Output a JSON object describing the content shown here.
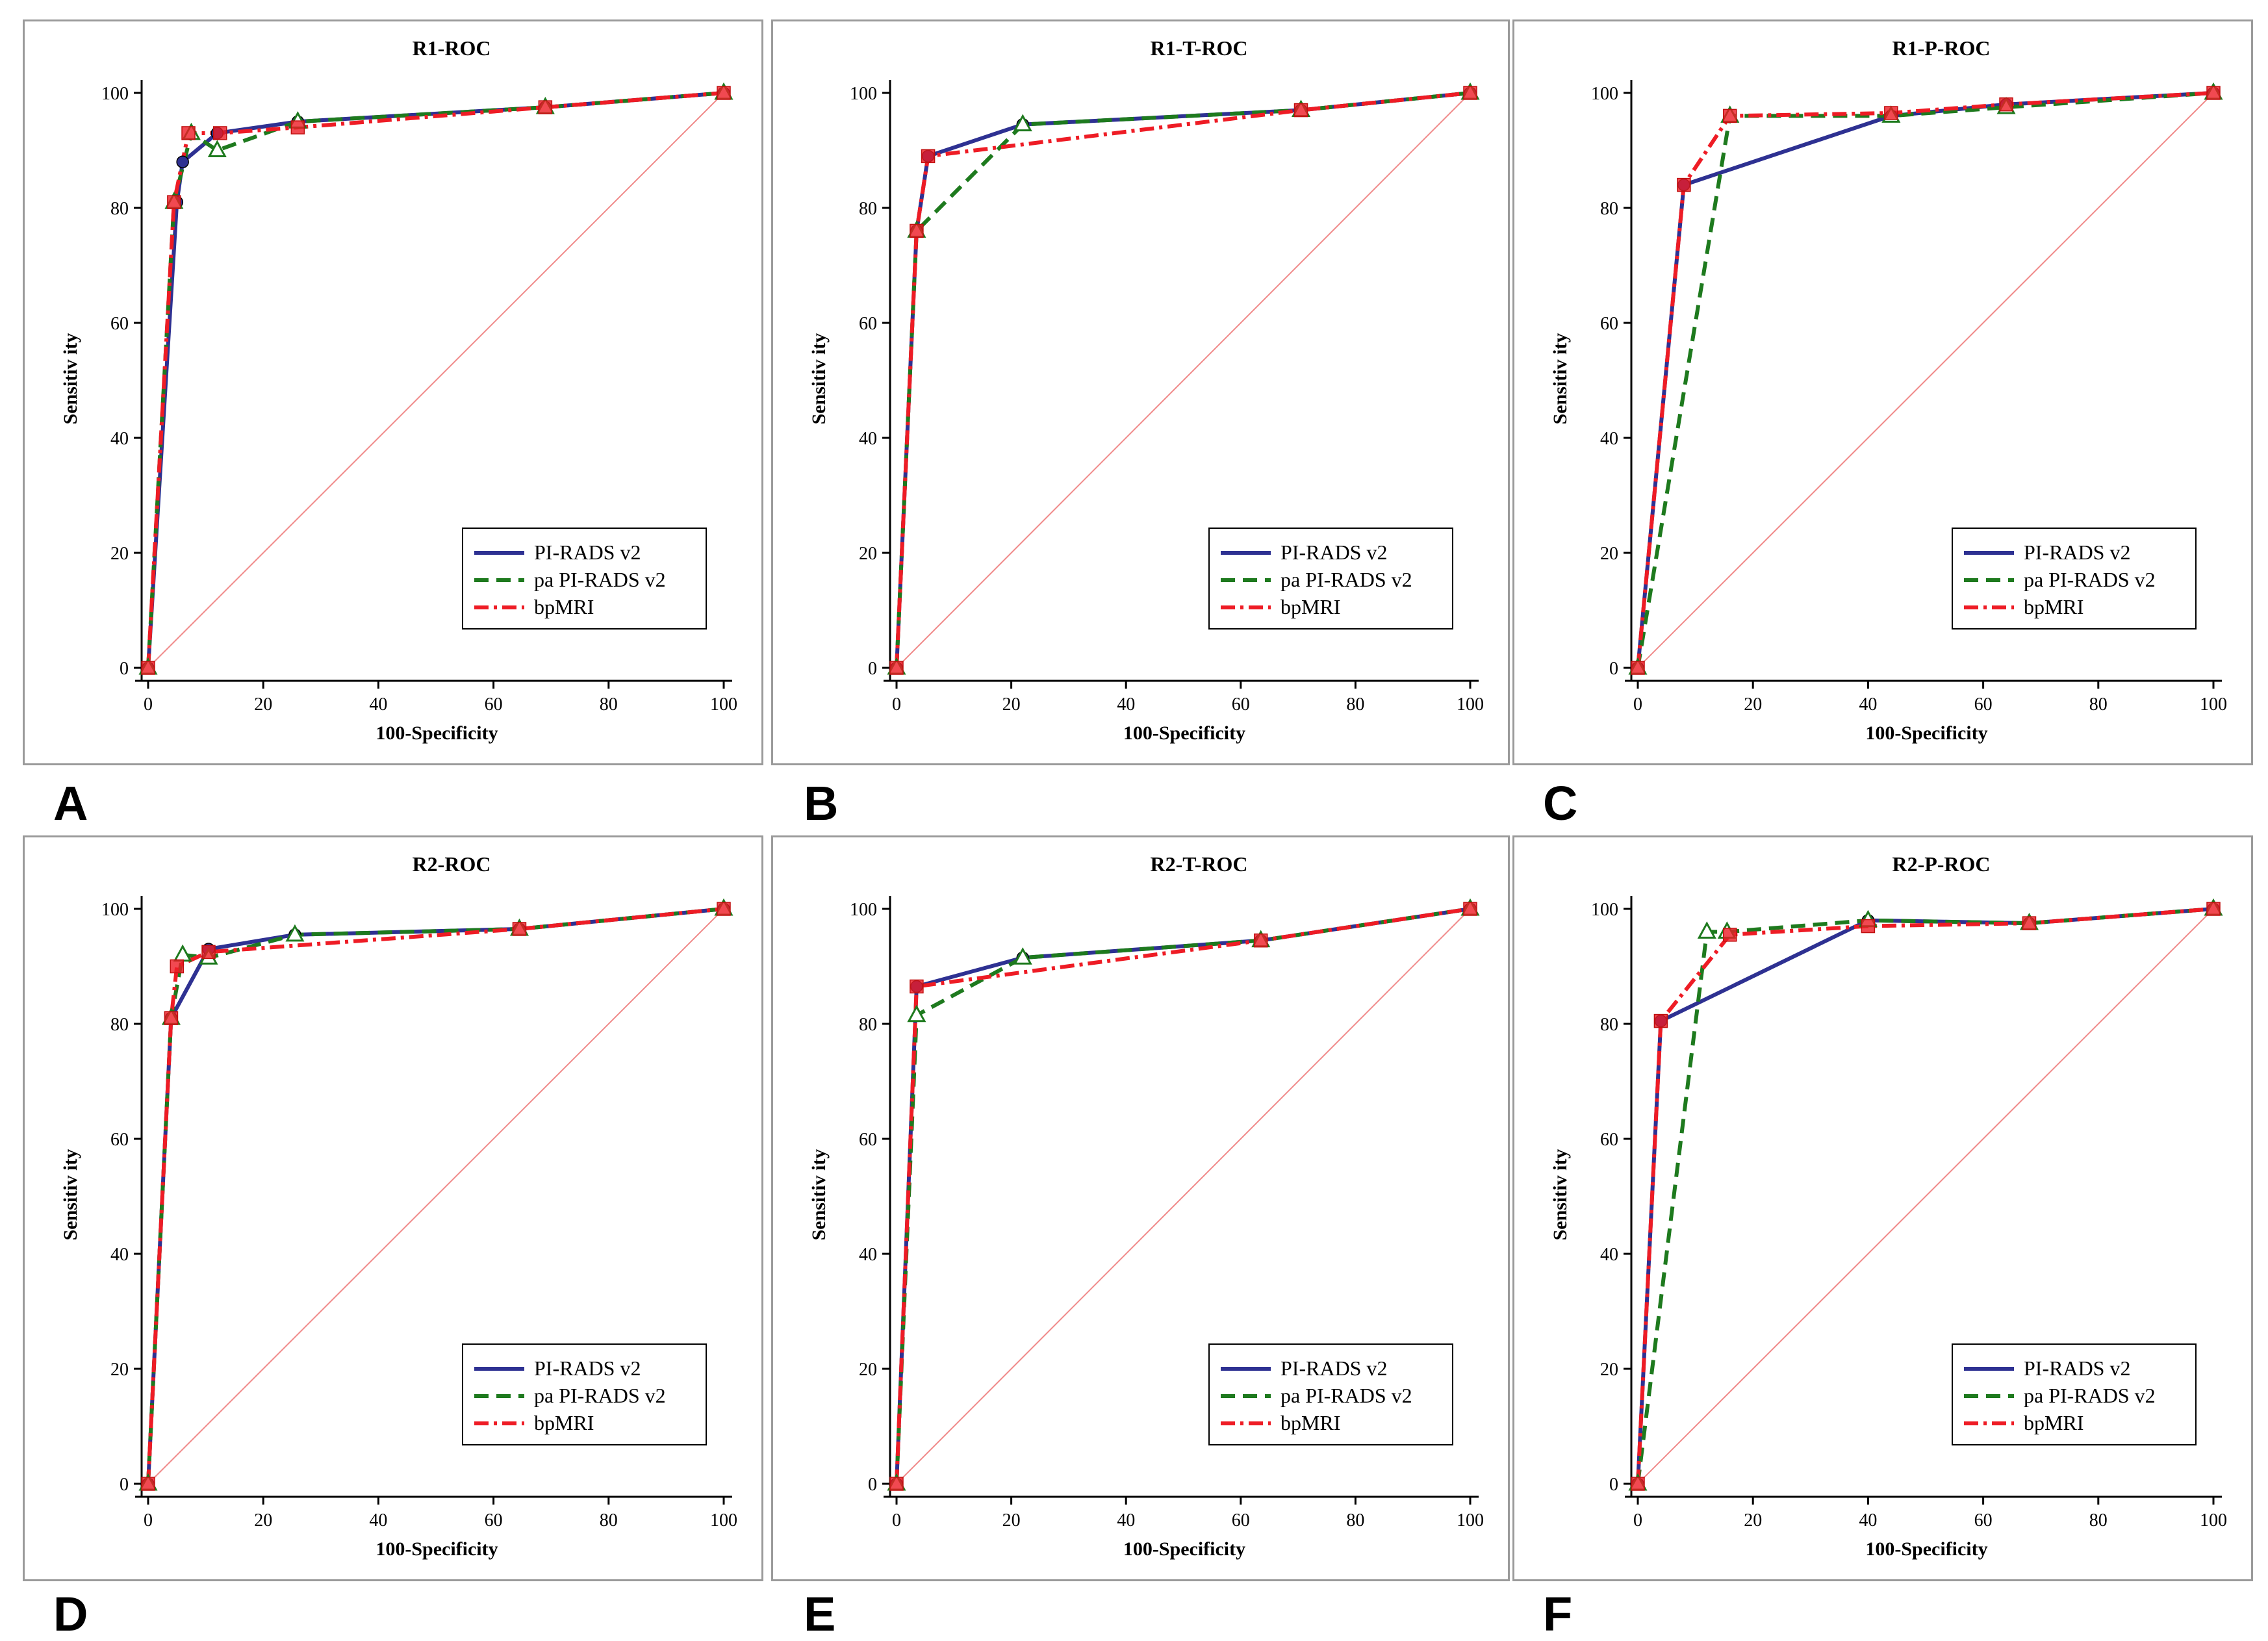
{
  "figure": {
    "legend_entries": [
      "PI-RADS v2",
      "pa PI-RADS v2",
      "bpMRI"
    ],
    "series_colors": {
      "PI-RADS v2": "#2e3192",
      "pa PI-RADS v2": "#1e7a1e",
      "bpMRI": "#ee1c25"
    },
    "reference_line_color": "#f08a8a"
  },
  "chart_data": [
    {
      "panel": "A",
      "type": "line",
      "title": "R1-ROC",
      "xlabel": "100-Specificity",
      "ylabel": "Sensitiv ity",
      "xlim": [
        0,
        100
      ],
      "ylim": [
        0,
        100
      ],
      "xticks": [
        0,
        20,
        40,
        60,
        80,
        100
      ],
      "yticks": [
        0,
        20,
        40,
        60,
        80,
        100
      ],
      "legend_position": "bottom-right",
      "series": [
        {
          "name": "PI-RADS v2",
          "x": [
            0,
            5,
            6,
            12,
            26,
            69,
            100
          ],
          "y": [
            0,
            81,
            88,
            93,
            95,
            97.5,
            100
          ]
        },
        {
          "name": "pa PI-RADS v2",
          "x": [
            0,
            4.5,
            7.5,
            12,
            26,
            69,
            100
          ],
          "y": [
            0,
            81,
            93,
            90,
            95,
            97.5,
            100
          ]
        },
        {
          "name": "bpMRI",
          "x": [
            0,
            4.5,
            7,
            12.5,
            26,
            69,
            100
          ],
          "y": [
            0,
            81,
            93,
            93,
            94,
            97.5,
            100
          ]
        }
      ]
    },
    {
      "panel": "B",
      "type": "line",
      "title": "R1-T-ROC",
      "xlabel": "100-Specificity",
      "ylabel": "Sensitiv ity",
      "xlim": [
        0,
        100
      ],
      "ylim": [
        0,
        100
      ],
      "xticks": [
        0,
        20,
        40,
        60,
        80,
        100
      ],
      "yticks": [
        0,
        20,
        40,
        60,
        80,
        100
      ],
      "legend_position": "bottom-right",
      "series": [
        {
          "name": "PI-RADS v2",
          "x": [
            0,
            3.5,
            5.5,
            22,
            70.5,
            100
          ],
          "y": [
            0,
            76,
            89,
            94.5,
            97,
            100
          ]
        },
        {
          "name": "pa PI-RADS v2",
          "x": [
            0,
            3.5,
            22,
            70.5,
            100
          ],
          "y": [
            0,
            76,
            94.5,
            97,
            100
          ]
        },
        {
          "name": "bpMRI",
          "x": [
            0,
            3.5,
            5.5,
            70.5,
            100
          ],
          "y": [
            0,
            76,
            89,
            97,
            100
          ]
        }
      ]
    },
    {
      "panel": "C",
      "type": "line",
      "title": "R1-P-ROC",
      "xlabel": "100-Specificity",
      "ylabel": "Sensitiv ity",
      "xlim": [
        0,
        100
      ],
      "ylim": [
        0,
        100
      ],
      "xticks": [
        0,
        20,
        40,
        60,
        80,
        100
      ],
      "yticks": [
        0,
        20,
        40,
        60,
        80,
        100
      ],
      "legend_position": "bottom-right",
      "series": [
        {
          "name": "PI-RADS v2",
          "x": [
            0,
            8,
            44,
            64,
            100
          ],
          "y": [
            0,
            84,
            96,
            98,
            100
          ]
        },
        {
          "name": "pa PI-RADS v2",
          "x": [
            0,
            16,
            44,
            64,
            100
          ],
          "y": [
            0,
            96,
            96,
            97.5,
            100
          ]
        },
        {
          "name": "bpMRI",
          "x": [
            0,
            8,
            16,
            44,
            64,
            100
          ],
          "y": [
            0,
            84,
            96,
            96.5,
            98,
            100
          ]
        }
      ]
    },
    {
      "panel": "D",
      "type": "line",
      "title": "R2-ROC",
      "xlabel": "100-Specificity",
      "ylabel": "Sensitiv ity",
      "xlim": [
        0,
        100
      ],
      "ylim": [
        0,
        100
      ],
      "xticks": [
        0,
        20,
        40,
        60,
        80,
        100
      ],
      "yticks": [
        0,
        20,
        40,
        60,
        80,
        100
      ],
      "legend_position": "bottom-right",
      "series": [
        {
          "name": "PI-RADS v2",
          "x": [
            0,
            4,
            10.5,
            25.5,
            64.5,
            100
          ],
          "y": [
            0,
            81,
            93,
            95.5,
            96.5,
            100
          ]
        },
        {
          "name": "pa PI-RADS v2",
          "x": [
            0,
            4,
            6,
            10.5,
            25.5,
            64.5,
            100
          ],
          "y": [
            0,
            81,
            92,
            91.5,
            95.5,
            96.5,
            100
          ]
        },
        {
          "name": "bpMRI",
          "x": [
            0,
            4,
            5,
            10.5,
            64.5,
            100
          ],
          "y": [
            0,
            81,
            90,
            92.5,
            96.5,
            100
          ]
        }
      ]
    },
    {
      "panel": "E",
      "type": "line",
      "title": "R2-T-ROC",
      "xlabel": "100-Specificity",
      "ylabel": "Sensitiv ity",
      "xlim": [
        0,
        100
      ],
      "ylim": [
        0,
        100
      ],
      "xticks": [
        0,
        20,
        40,
        60,
        80,
        100
      ],
      "yticks": [
        0,
        20,
        40,
        60,
        80,
        100
      ],
      "legend_position": "bottom-right",
      "series": [
        {
          "name": "PI-RADS v2",
          "x": [
            0,
            3.5,
            22,
            63.5,
            100
          ],
          "y": [
            0,
            86.5,
            91.5,
            94.5,
            100
          ]
        },
        {
          "name": "pa PI-RADS v2",
          "x": [
            0,
            3.5,
            22,
            63.5,
            100
          ],
          "y": [
            0,
            81.5,
            91.5,
            94.5,
            100
          ]
        },
        {
          "name": "bpMRI",
          "x": [
            0,
            3.5,
            63.5,
            100
          ],
          "y": [
            0,
            86.5,
            94.5,
            100
          ]
        }
      ]
    },
    {
      "panel": "F",
      "type": "line",
      "title": "R2-P-ROC",
      "xlabel": "100-Specificity",
      "ylabel": "Sensitiv ity",
      "xlim": [
        0,
        100
      ],
      "ylim": [
        0,
        100
      ],
      "xticks": [
        0,
        20,
        40,
        60,
        80,
        100
      ],
      "yticks": [
        0,
        20,
        40,
        60,
        80,
        100
      ],
      "legend_position": "bottom-right",
      "series": [
        {
          "name": "PI-RADS v2",
          "x": [
            0,
            4,
            40,
            68,
            100
          ],
          "y": [
            0,
            80.5,
            98,
            97.5,
            100
          ]
        },
        {
          "name": "pa PI-RADS v2",
          "x": [
            0,
            12,
            15.5,
            40,
            68,
            100
          ],
          "y": [
            0,
            96,
            96,
            98,
            97.5,
            100
          ]
        },
        {
          "name": "bpMRI",
          "x": [
            0,
            4,
            16,
            40,
            68,
            100
          ],
          "y": [
            0,
            80.5,
            95.5,
            97,
            97.5,
            100
          ]
        }
      ]
    }
  ]
}
